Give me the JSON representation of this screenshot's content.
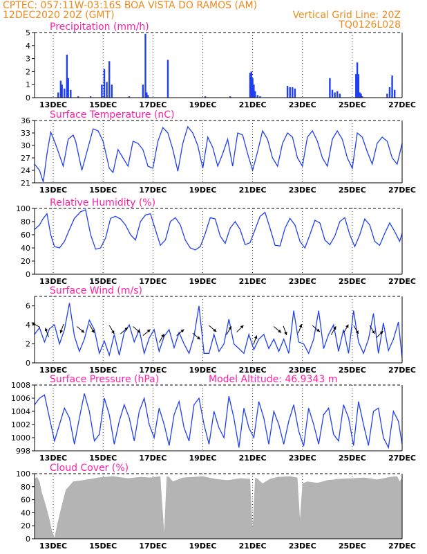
{
  "header": {
    "line1_left": "CPTEC:  057:11W-03:16S  BOA VISTA DO RAMOS (AM)",
    "line2_left": "12DEC2020 20Z (GMT)",
    "line2_right": "Vertical Grid Line: 20Z",
    "line3_right": "TQ0126L028"
  },
  "colors": {
    "header": "#ee8a1e",
    "panel_title": "#ff1fa8",
    "line": "#1f3ff0",
    "cloud": "#b4b4b4",
    "frame": "#000000"
  },
  "x_date_labels": [
    "13DEC",
    "15DEC",
    "17DEC",
    "19DEC",
    "21DEC",
    "23DEC",
    "25DEC",
    "27DEC"
  ],
  "x_date_days": [
    13,
    15,
    17,
    19,
    21,
    23,
    25,
    27
  ],
  "x_start_day": 12.25,
  "x_end_day": 27,
  "chart_data": [
    {
      "id": "precipitation",
      "type": "bar",
      "title": "Precipitation (mm/h)",
      "ylim": [
        0,
        5
      ],
      "yticks": [
        0,
        1,
        2,
        3,
        4,
        5
      ],
      "x_day": [
        13.2,
        13.3,
        13.35,
        13.45,
        13.55,
        13.6,
        13.7,
        14.0,
        14.5,
        14.95,
        15.05,
        15.15,
        15.25,
        15.35,
        16.05,
        16.6,
        16.7,
        16.75,
        16.8,
        17.6,
        19.1,
        20.1,
        20.9,
        20.95,
        21.0,
        21.05,
        21.1,
        21.2,
        21.3,
        22.4,
        22.5,
        22.6,
        22.7,
        24.1,
        24.2,
        24.3,
        24.4,
        24.5,
        25.15,
        25.2,
        25.25,
        25.3,
        25.35,
        25.4,
        26.4,
        26.5,
        26.6,
        26.7
      ],
      "values": [
        0.4,
        1.3,
        1.0,
        0.7,
        3.3,
        1.5,
        0.6,
        0.1,
        0.1,
        1.0,
        2.2,
        1.2,
        2.8,
        1.0,
        0.1,
        1.0,
        4.9,
        0.4,
        0.2,
        2.9,
        0.1,
        0.1,
        1.9,
        2.0,
        1.5,
        1.0,
        0.5,
        0.2,
        0.1,
        0.9,
        0.8,
        0.8,
        0.7,
        1.5,
        0.6,
        0.4,
        0.5,
        0.3,
        1.8,
        2.7,
        1.8,
        0.4,
        0.3,
        0.1,
        0.3,
        0.8,
        1.7,
        0.6
      ]
    },
    {
      "id": "temperature",
      "type": "line",
      "title": "Surface Temperature (nC)",
      "ylim": [
        21,
        36
      ],
      "yticks": [
        21,
        24,
        27,
        30,
        33,
        36
      ],
      "x_day": [
        12.25,
        12.45,
        12.6,
        12.75,
        12.9,
        13.05,
        13.2,
        13.4,
        13.6,
        13.8,
        13.9,
        14.15,
        14.4,
        14.6,
        14.8,
        15.0,
        15.25,
        15.4,
        15.6,
        15.8,
        16.0,
        16.2,
        16.4,
        16.6,
        16.8,
        17.0,
        17.2,
        17.4,
        17.6,
        17.8,
        18.0,
        18.2,
        18.4,
        18.6,
        18.8,
        19.0,
        19.2,
        19.4,
        19.6,
        19.8,
        20.0,
        20.2,
        20.4,
        20.6,
        20.8,
        21.0,
        21.2,
        21.4,
        21.6,
        21.8,
        22.0,
        22.2,
        22.4,
        22.6,
        22.8,
        23.0,
        23.2,
        23.4,
        23.6,
        23.8,
        24.0,
        24.2,
        24.4,
        24.6,
        24.8,
        25.0,
        25.2,
        25.4,
        25.6,
        25.8,
        26.0,
        26.2,
        26.4,
        26.6,
        26.8,
        27.0
      ],
      "values": [
        25.5,
        24.0,
        21.2,
        28.0,
        33.2,
        31.0,
        28.5,
        25.0,
        31.5,
        32.5,
        31.0,
        24.0,
        29.5,
        34.0,
        33.5,
        31.0,
        24.5,
        23.5,
        29.0,
        27.0,
        25.0,
        31.0,
        30.5,
        29.0,
        25.0,
        24.5,
        31.0,
        34.3,
        33.0,
        29.0,
        23.8,
        30.5,
        34.5,
        33.0,
        30.0,
        24.5,
        32.0,
        29.5,
        25.0,
        28.0,
        31.5,
        25.0,
        33.0,
        32.5,
        28.0,
        24.0,
        28.5,
        33.5,
        31.5,
        27.0,
        25.0,
        30.5,
        33.0,
        32.0,
        27.0,
        25.0,
        32.0,
        33.5,
        31.0,
        27.0,
        25.0,
        31.5,
        33.5,
        31.5,
        27.0,
        24.5,
        33.0,
        32.0,
        28.5,
        25.5,
        30.5,
        32.0,
        31.0,
        27.0,
        25.5,
        30.5
      ]
    },
    {
      "id": "humidity",
      "type": "line",
      "title": "Relative Humidity (%)",
      "ylim": [
        0,
        100
      ],
      "yticks": [
        0,
        20,
        40,
        60,
        80,
        100
      ],
      "x_day": [
        12.25,
        12.45,
        12.6,
        12.75,
        12.9,
        13.05,
        13.25,
        13.45,
        13.65,
        13.85,
        14.1,
        14.3,
        14.5,
        14.7,
        14.9,
        15.1,
        15.3,
        15.5,
        15.7,
        15.9,
        16.1,
        16.3,
        16.5,
        16.7,
        16.9,
        17.1,
        17.3,
        17.5,
        17.7,
        17.9,
        18.1,
        18.3,
        18.5,
        18.7,
        18.9,
        19.1,
        19.3,
        19.5,
        19.7,
        19.9,
        20.1,
        20.3,
        20.5,
        20.7,
        20.9,
        21.1,
        21.3,
        21.5,
        21.7,
        21.9,
        22.1,
        22.3,
        22.5,
        22.7,
        22.9,
        23.1,
        23.3,
        23.5,
        23.7,
        23.9,
        24.1,
        24.3,
        24.5,
        24.7,
        24.9,
        25.1,
        25.3,
        25.5,
        25.7,
        25.9,
        26.1,
        26.3,
        26.5,
        26.7,
        26.9,
        27.0
      ],
      "values": [
        68,
        75,
        85,
        92,
        60,
        42,
        40,
        50,
        68,
        85,
        95,
        98,
        60,
        38,
        40,
        55,
        85,
        88,
        84,
        75,
        60,
        52,
        80,
        90,
        92,
        68,
        44,
        52,
        80,
        86,
        75,
        52,
        40,
        37,
        42,
        62,
        86,
        84,
        58,
        47,
        70,
        80,
        68,
        45,
        48,
        68,
        88,
        94,
        70,
        44,
        43,
        70,
        85,
        75,
        50,
        40,
        60,
        82,
        78,
        52,
        45,
        58,
        80,
        86,
        60,
        42,
        60,
        84,
        75,
        50,
        44,
        62,
        78,
        65,
        50,
        62
      ]
    },
    {
      "id": "wind",
      "type": "line",
      "title": "Surface Wind (m/s)",
      "ylim": [
        0,
        7
      ],
      "yticks": [
        0,
        2,
        4,
        6
      ],
      "x_day": [
        12.25,
        12.45,
        12.65,
        12.85,
        13.05,
        13.25,
        13.45,
        13.65,
        13.85,
        14.05,
        14.25,
        14.45,
        14.65,
        14.85,
        15.05,
        15.25,
        15.45,
        15.65,
        15.85,
        16.05,
        16.25,
        16.45,
        16.65,
        16.85,
        17.05,
        17.25,
        17.45,
        17.65,
        17.85,
        18.05,
        18.25,
        18.45,
        18.65,
        18.85,
        19.05,
        19.25,
        19.45,
        19.65,
        19.85,
        20.05,
        20.25,
        20.45,
        20.65,
        20.85,
        21.05,
        21.25,
        21.45,
        21.65,
        21.85,
        22.05,
        22.25,
        22.45,
        22.65,
        22.85,
        23.05,
        23.25,
        23.45,
        23.65,
        23.85,
        24.05,
        24.25,
        24.45,
        24.65,
        24.85,
        25.05,
        25.25,
        25.45,
        25.65,
        25.85,
        26.05,
        26.25,
        26.45,
        26.65,
        26.85,
        27.0
      ],
      "values": [
        3.0,
        3.7,
        2.2,
        3.6,
        4.0,
        2.0,
        3.5,
        6.3,
        2.8,
        1.2,
        2.5,
        4.5,
        3.5,
        1.0,
        2.3,
        0.8,
        3.0,
        0.8,
        3.2,
        4.0,
        2.2,
        3.5,
        1.0,
        2.6,
        3.5,
        1.2,
        2.8,
        3.5,
        1.6,
        3.2,
        2.0,
        1.0,
        2.8,
        6.0,
        1.0,
        1.0,
        3.0,
        1.2,
        2.0,
        4.6,
        2.0,
        1.5,
        1.0,
        3.0,
        1.4,
        2.5,
        3.0,
        1.5,
        2.5,
        1.2,
        2.5,
        1.0,
        5.5,
        2.2,
        2.0,
        1.0,
        2.5,
        5.5,
        1.5,
        3.0,
        4.0,
        1.2,
        3.5,
        1.0,
        5.5,
        2.2,
        1.0,
        2.5,
        5.2,
        1.0,
        4.2,
        1.3,
        2.5,
        4.3,
        0.5
      ]
    },
    {
      "id": "pressure",
      "type": "line",
      "title": "Surface Pressure (hPa)",
      "annotation": "Model Altitude: 46.9343 m",
      "ylim": [
        998,
        1008
      ],
      "yticks": [
        998,
        1000,
        1002,
        1004,
        1006,
        1008
      ],
      "x_day": [
        12.25,
        12.45,
        12.65,
        12.85,
        13.05,
        13.25,
        13.45,
        13.65,
        13.85,
        14.05,
        14.25,
        14.45,
        14.65,
        14.85,
        15.05,
        15.25,
        15.45,
        15.65,
        15.85,
        16.05,
        16.25,
        16.45,
        16.65,
        16.85,
        17.05,
        17.25,
        17.45,
        17.65,
        17.85,
        18.05,
        18.25,
        18.45,
        18.65,
        18.85,
        19.05,
        19.25,
        19.45,
        19.65,
        19.85,
        20.05,
        20.25,
        20.45,
        20.65,
        20.85,
        21.05,
        21.25,
        21.45,
        21.65,
        21.85,
        22.05,
        22.25,
        22.45,
        22.65,
        22.85,
        23.05,
        23.25,
        23.45,
        23.65,
        23.85,
        24.05,
        24.25,
        24.45,
        24.65,
        24.85,
        25.05,
        25.25,
        25.45,
        25.65,
        25.85,
        26.05,
        26.25,
        26.45,
        26.65,
        26.85,
        27.0
      ],
      "values": [
        1005.0,
        1006.0,
        1006.5,
        1003.0,
        999.5,
        1002.0,
        1004.5,
        1003.0,
        999.0,
        1003.0,
        1006.7,
        1004.0,
        999.5,
        1000.5,
        1006.0,
        1003.5,
        999.0,
        1002.5,
        1005.0,
        1003.0,
        999.5,
        1004.0,
        1006.0,
        1002.0,
        1000.0,
        1004.5,
        1002.0,
        998.8,
        1003.5,
        1005.5,
        1001.5,
        999.5,
        1005.0,
        1006.0,
        1002.0,
        999.0,
        1004.0,
        1001.5,
        1000.0,
        1006.3,
        1003.0,
        998.5,
        1004.5,
        1001.5,
        1000.0,
        1005.5,
        1003.0,
        999.0,
        1004.0,
        1002.0,
        999.0,
        1002.5,
        1005.0,
        1001.0,
        998.7,
        1004.5,
        1002.0,
        999.0,
        1003.5,
        1004.5,
        1000.5,
        999.5,
        1005.0,
        1003.0,
        998.8,
        1005.5,
        1002.0,
        998.8,
        1004.0,
        1004.5,
        1000.0,
        998.5,
        1004.0,
        1002.5,
        999.0
      ]
    },
    {
      "id": "cloud",
      "type": "area",
      "title": "Cloud Cover (%)",
      "ylim": [
        0,
        100
      ],
      "yticks": [
        0,
        20,
        40,
        60,
        80,
        100
      ],
      "x_day": [
        12.25,
        12.35,
        12.45,
        12.55,
        12.65,
        12.75,
        12.85,
        12.95,
        13.05,
        13.15,
        13.3,
        13.5,
        13.8,
        14.2,
        14.8,
        15.4,
        16.0,
        16.5,
        16.9,
        17.3,
        17.45,
        17.55,
        17.65,
        17.8,
        18.2,
        18.6,
        19.0,
        19.5,
        20.0,
        20.5,
        20.9,
        21.0,
        21.1,
        21.2,
        21.4,
        21.7,
        22.0,
        22.5,
        22.8,
        22.9,
        23.0,
        23.2,
        23.6,
        24.0,
        24.5,
        25.0,
        25.5,
        26.0,
        26.5,
        26.8,
        26.9,
        27.0
      ],
      "values": [
        92,
        95,
        88,
        70,
        58,
        45,
        30,
        12,
        2,
        20,
        45,
        75,
        88,
        90,
        94,
        96,
        93,
        95,
        94,
        96,
        10,
        96,
        95,
        88,
        94,
        95,
        96,
        92,
        90,
        93,
        92,
        15,
        94,
        92,
        85,
        92,
        95,
        96,
        94,
        30,
        85,
        88,
        86,
        90,
        92,
        93,
        94,
        91,
        95,
        96,
        88,
        94
      ]
    }
  ],
  "wind_arrows": [
    {
      "day": 12.3,
      "level": 4.0,
      "dir": 150
    },
    {
      "day": 12.75,
      "level": 3.2,
      "dir": 110
    },
    {
      "day": 13.35,
      "level": 3.6,
      "dir": 250
    },
    {
      "day": 14.1,
      "level": 3.5,
      "dir": 320
    },
    {
      "day": 14.55,
      "level": 3.6,
      "dir": 300
    },
    {
      "day": 15.35,
      "level": 3.5,
      "dir": 300
    },
    {
      "day": 15.85,
      "level": 3.4,
      "dir": 40
    },
    {
      "day": 16.35,
      "level": 3.5,
      "dir": 320
    },
    {
      "day": 16.75,
      "level": 3.2,
      "dir": 40
    },
    {
      "day": 17.35,
      "level": 2.6,
      "dir": 60
    },
    {
      "day": 18.1,
      "level": 3.2,
      "dir": 40
    },
    {
      "day": 18.75,
      "level": 2.8,
      "dir": 320
    },
    {
      "day": 19.4,
      "level": 3.6,
      "dir": 320
    },
    {
      "day": 20.05,
      "level": 3.4,
      "dir": 60
    },
    {
      "day": 20.5,
      "level": 3.6,
      "dir": 45
    },
    {
      "day": 21.1,
      "level": 2.4,
      "dir": 70
    },
    {
      "day": 22.0,
      "level": 3.5,
      "dir": 320
    },
    {
      "day": 22.3,
      "level": 3.4,
      "dir": 290
    },
    {
      "day": 22.9,
      "level": 3.6,
      "dir": 70
    },
    {
      "day": 23.55,
      "level": 3.6,
      "dir": 320
    },
    {
      "day": 24.25,
      "level": 3.4,
      "dir": 60
    },
    {
      "day": 24.75,
      "level": 3.6,
      "dir": 60
    },
    {
      "day": 25.15,
      "level": 3.5,
      "dir": 300
    },
    {
      "day": 25.8,
      "level": 3.5,
      "dir": 300
    },
    {
      "day": 26.1,
      "level": 3.0,
      "dir": 45
    }
  ]
}
